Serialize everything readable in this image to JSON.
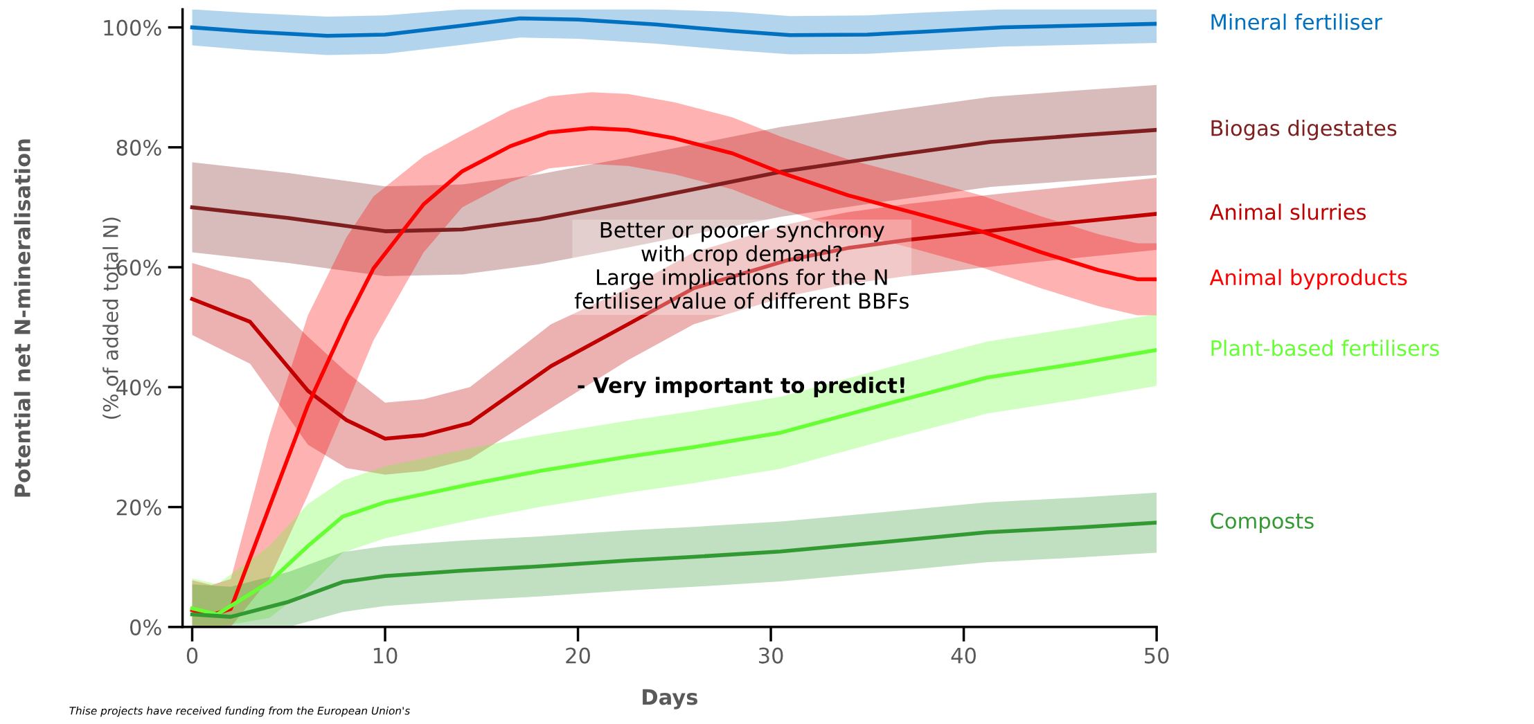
{
  "chart_data": {
    "type": "line",
    "xlabel": "Days",
    "ylabel": "Potential net N-mineralisation\n(% of added total N)",
    "xlim": [
      -0.5,
      50
    ],
    "ylim": [
      0,
      103
    ],
    "xticks": [
      0,
      10,
      20,
      30,
      40,
      50
    ],
    "yticks": [
      {
        "value": 0,
        "label": "0%"
      },
      {
        "value": 20,
        "label": "20%"
      },
      {
        "value": 40,
        "label": "40%"
      },
      {
        "value": 60,
        "label": "60%"
      },
      {
        "value": 80,
        "label": "80%"
      },
      {
        "value": 100,
        "label": "100%"
      }
    ],
    "grid": false,
    "legend": false,
    "marker": "none",
    "line_style": "solid",
    "series": [
      {
        "name": "Mineral fertiliser",
        "color": "#0070c0",
        "x": [
          0,
          3,
          7,
          10,
          14,
          17,
          20,
          24,
          28,
          31,
          35,
          38,
          42,
          46,
          50
        ],
        "values": [
          100,
          99.3,
          98.6,
          98.8,
          100.3,
          101.5,
          101.3,
          100.5,
          99.4,
          98.7,
          98.8,
          99.3,
          100,
          100.3,
          100.6
        ],
        "lower": [
          97,
          96.2,
          95.4,
          95.6,
          97.1,
          98.3,
          98.1,
          97.3,
          96.2,
          95.5,
          95.6,
          96.1,
          96.8,
          97.1,
          97.4
        ],
        "upper": [
          103,
          102.4,
          101.8,
          102,
          103,
          103,
          103,
          103,
          102.6,
          101.9,
          102,
          102.5,
          103,
          103,
          103
        ]
      },
      {
        "name": "Biogas digestates",
        "color": "#7f1f1f",
        "x": [
          0,
          5,
          10,
          14,
          18,
          22.6,
          26,
          30.5,
          36,
          41.4,
          46,
          50
        ],
        "values": [
          70,
          68.2,
          66,
          66.3,
          68,
          70.8,
          73,
          75.9,
          78.5,
          80.9,
          82,
          82.9
        ],
        "lower": [
          62.5,
          60.7,
          58.5,
          58.8,
          60.5,
          63.3,
          65.5,
          68.4,
          71,
          73.4,
          74.5,
          75.4
        ],
        "upper": [
          77.5,
          75.7,
          73.5,
          73.8,
          75.5,
          78.3,
          80.5,
          83.4,
          86,
          88.4,
          89.5,
          90.4
        ]
      },
      {
        "name": "Animal slurries",
        "color": "#c00000",
        "x": [
          0,
          3,
          6,
          8,
          10,
          12,
          14.4,
          18.6,
          22.6,
          26,
          30.9,
          34,
          37.2,
          42,
          46,
          50
        ],
        "values": [
          54.7,
          50.9,
          39.4,
          34.5,
          31.4,
          32,
          34,
          43.5,
          50.5,
          56.5,
          61.2,
          63.2,
          64.6,
          66.3,
          67.6,
          68.9
        ],
        "lower": [
          48.7,
          43.9,
          30.4,
          26.5,
          25.4,
          26,
          28,
          36.5,
          44.5,
          50.5,
          55.2,
          57.2,
          58.6,
          60.3,
          61.6,
          62.9
        ],
        "upper": [
          60.7,
          57.9,
          48.4,
          42.5,
          37.4,
          38,
          40,
          50.5,
          56.5,
          62.5,
          67.2,
          69.2,
          70.6,
          72.3,
          73.6,
          74.9
        ]
      },
      {
        "name": "Animal byproducts",
        "color": "#ff0000",
        "x": [
          0,
          1,
          2,
          4,
          6,
          8,
          9.4,
          12,
          14,
          16.5,
          18.5,
          20.7,
          22.6,
          25,
          28,
          30.5,
          34,
          37.5,
          40.9,
          44,
          47,
          49,
          50
        ],
        "values": [
          2.8,
          2,
          3,
          20,
          37,
          51,
          59.8,
          70.5,
          76,
          80.2,
          82.5,
          83.2,
          82.9,
          81.5,
          79,
          75.8,
          72,
          69,
          66,
          62.5,
          59.5,
          58,
          58
        ],
        "lower": [
          0,
          0,
          0,
          8,
          22,
          37,
          47.8,
          62.5,
          70,
          74.2,
          76.5,
          77.2,
          76.9,
          75.5,
          73,
          69.8,
          66,
          63,
          60,
          56.5,
          53.5,
          52,
          52
        ],
        "upper": [
          7.8,
          7,
          8,
          32,
          52,
          65,
          71.8,
          78.5,
          82,
          86.2,
          88.5,
          89.2,
          88.9,
          87.5,
          85,
          81.8,
          78,
          75,
          72,
          68.5,
          65.5,
          64,
          64
        ]
      },
      {
        "name": "Plant-based fertilisers",
        "color": "#66ff33",
        "x": [
          0,
          1.3,
          4,
          6,
          7.8,
          10,
          14.4,
          18,
          22.6,
          26,
          30.5,
          36,
          41.2,
          46,
          50
        ],
        "values": [
          3.1,
          2.1,
          7.5,
          13.5,
          18.4,
          20.8,
          23.8,
          26,
          28.4,
          30,
          32.4,
          37.2,
          41.6,
          44,
          46.2
        ],
        "lower": [
          0,
          0,
          1.5,
          6.5,
          12.4,
          14.8,
          17.8,
          20,
          22.4,
          24,
          26.4,
          31.2,
          35.6,
          38,
          40.2
        ],
        "upper": [
          8.1,
          7.1,
          13.5,
          20.5,
          24.4,
          26.8,
          29.8,
          32,
          34.4,
          36,
          38.4,
          43.2,
          47.6,
          50,
          52.2
        ]
      },
      {
        "name": "Composts",
        "color": "#339933",
        "x": [
          0,
          2,
          5,
          7.8,
          10,
          14,
          18,
          22.6,
          26,
          30.5,
          36,
          41.2,
          46,
          50
        ],
        "values": [
          2.1,
          1.7,
          4.2,
          7.5,
          8.5,
          9.4,
          10.1,
          11.1,
          11.7,
          12.6,
          14.2,
          15.8,
          16.6,
          17.4
        ],
        "lower": [
          0,
          0,
          0,
          2.5,
          3.5,
          4.4,
          5.1,
          6.1,
          6.7,
          7.6,
          9.2,
          10.8,
          11.6,
          12.4
        ],
        "upper": [
          7.1,
          6.7,
          9.2,
          12.5,
          13.5,
          14.4,
          15.1,
          16.1,
          16.7,
          17.6,
          19.2,
          20.8,
          21.6,
          22.4
        ]
      }
    ],
    "annotations": [
      "Better or poorer synchrony\nwith crop demand?\nLarge implications for the N\nfertiliser value of different BBFs",
      "- Very important to predict!",
      "Thise projects have received funding from the European Union's"
    ]
  }
}
